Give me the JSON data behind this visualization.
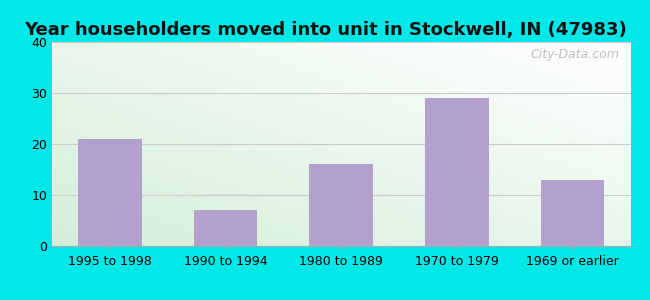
{
  "title": "Year householders moved into unit in Stockwell, IN (47983)",
  "categories": [
    "1995 to 1998",
    "1990 to 1994",
    "1980 to 1989",
    "1970 to 1979",
    "1969 or earlier"
  ],
  "values": [
    21,
    7,
    16,
    29,
    13
  ],
  "bar_color": "#b3a0cc",
  "ylim": [
    0,
    40
  ],
  "yticks": [
    0,
    10,
    20,
    30,
    40
  ],
  "background_outer": "#00e8e8",
  "grad_color_topleft": "#d8f0d8",
  "grad_color_bottomright": "#ffffff",
  "grid_color": "#cccccc",
  "title_fontsize": 13,
  "tick_fontsize": 9,
  "watermark": "City-Data.com",
  "bar_width": 0.55
}
